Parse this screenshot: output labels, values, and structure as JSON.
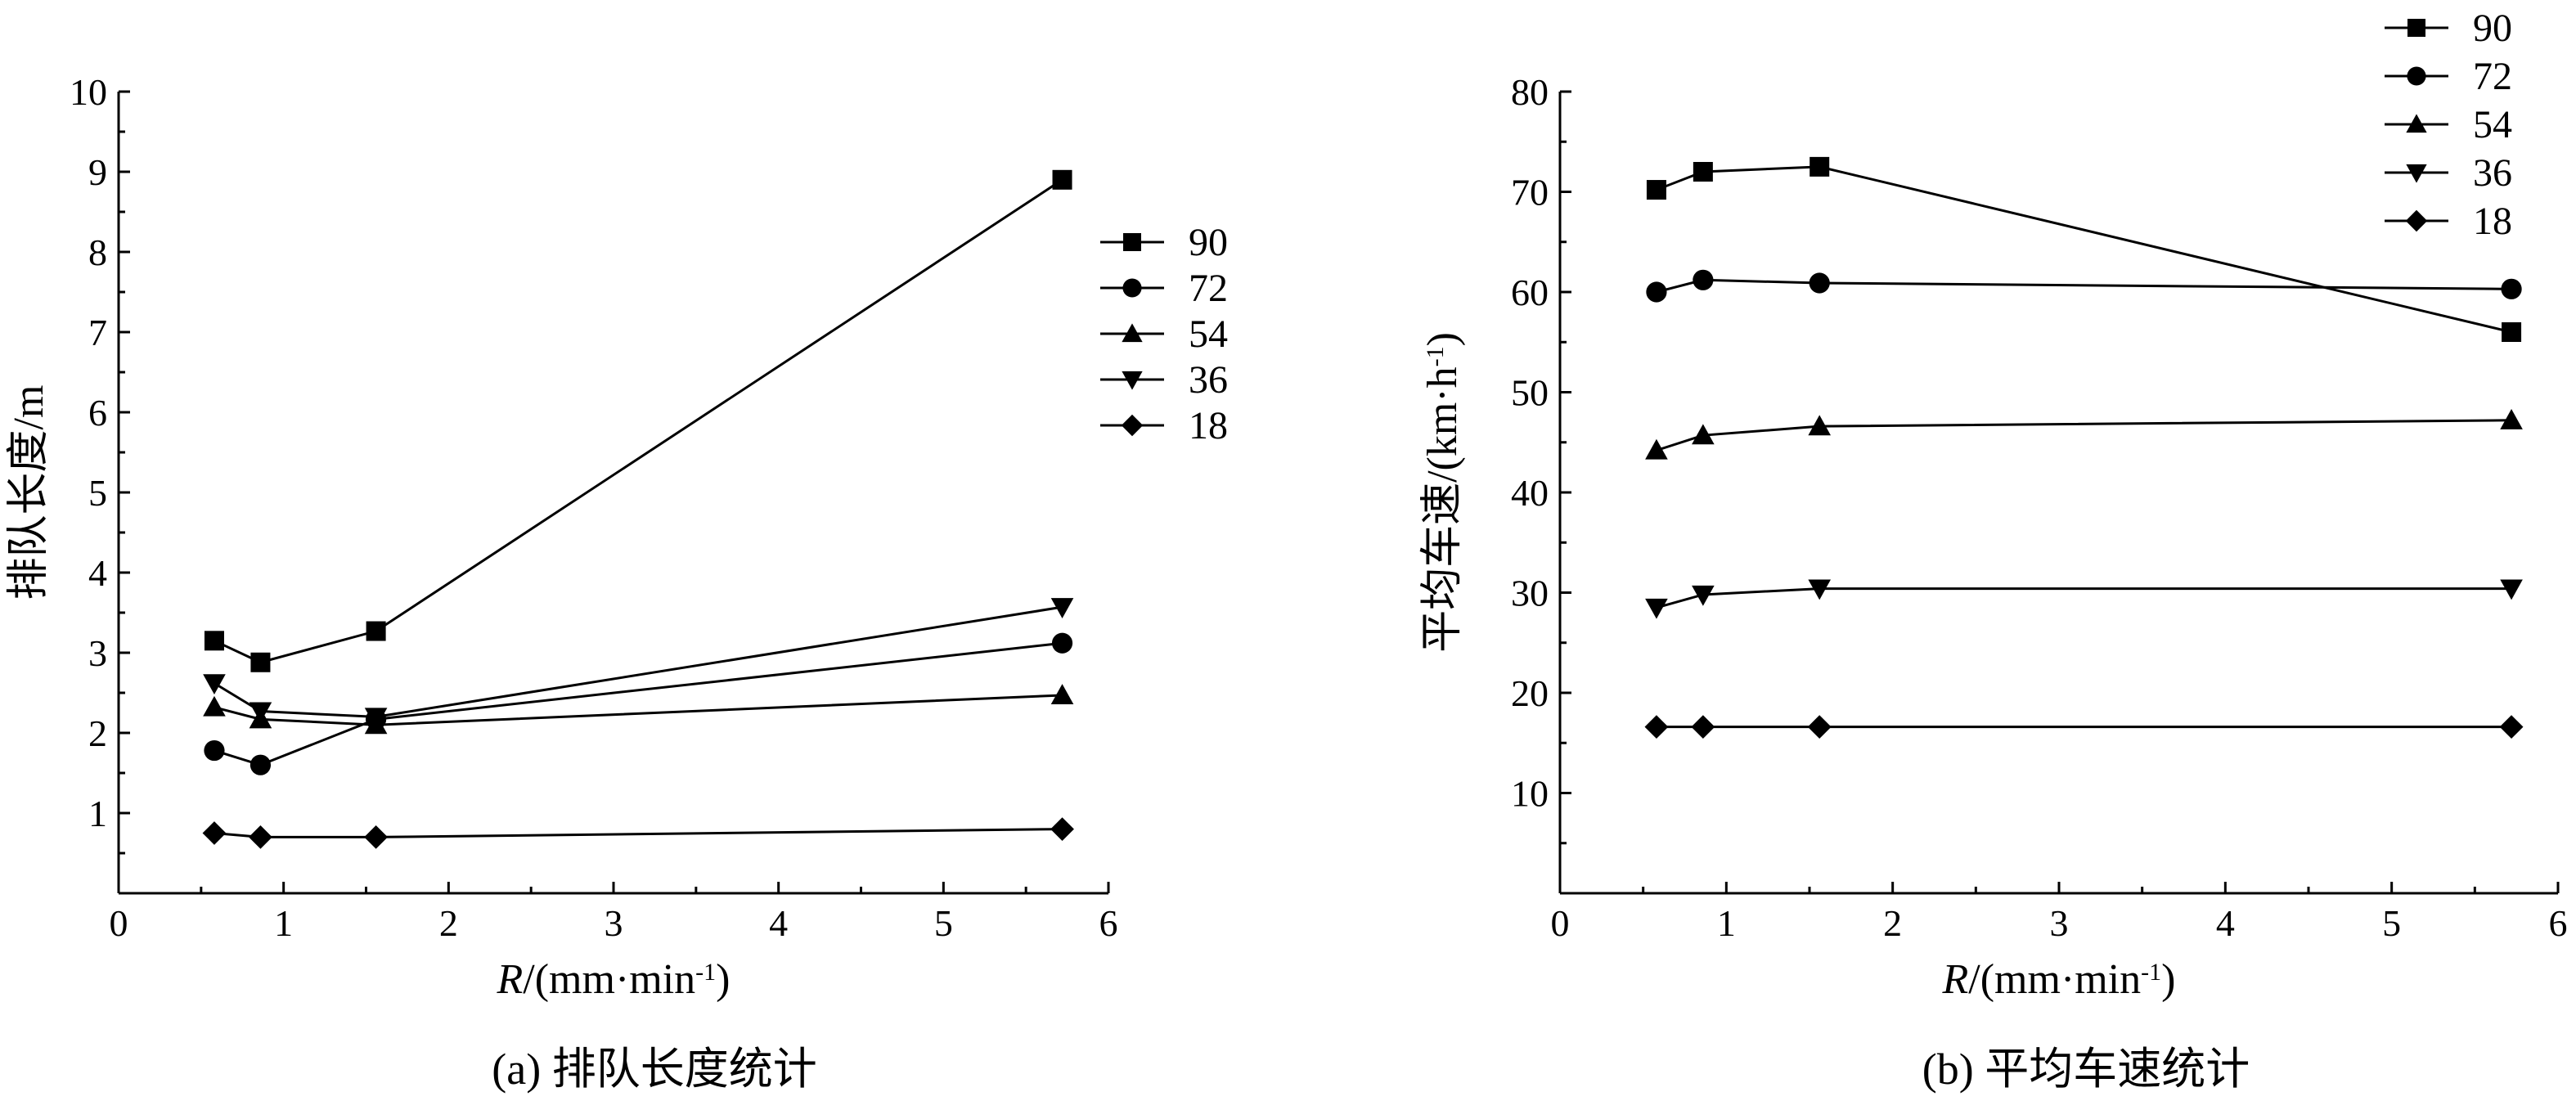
{
  "chart_data": [
    {
      "type": "line",
      "panel_caption": "(a) 排队长度统计",
      "xlabel": "R/(mm·min⁻¹)",
      "ylabel": "排队长度/m",
      "xlim": [
        0,
        6
      ],
      "ylim": [
        0,
        10
      ],
      "xticks": [
        0,
        1,
        2,
        3,
        4,
        5,
        6
      ],
      "yticks": [
        1,
        2,
        3,
        4,
        5,
        6,
        7,
        8,
        9,
        10
      ],
      "x": [
        0.58,
        0.86,
        1.56,
        5.72
      ],
      "legend_position": "right-middle",
      "grid": false,
      "series": [
        {
          "name": "90",
          "marker": "square",
          "values": [
            3.15,
            2.88,
            3.27,
            8.9
          ]
        },
        {
          "name": "72",
          "marker": "circle",
          "values": [
            1.78,
            1.6,
            2.17,
            3.12
          ]
        },
        {
          "name": "54",
          "marker": "triangle-up",
          "values": [
            2.32,
            2.17,
            2.1,
            2.47
          ]
        },
        {
          "name": "36",
          "marker": "triangle-down",
          "values": [
            2.62,
            2.27,
            2.2,
            3.57
          ]
        },
        {
          "name": "18",
          "marker": "diamond",
          "values": [
            0.75,
            0.7,
            0.7,
            0.8
          ]
        }
      ]
    },
    {
      "type": "line",
      "panel_caption": "(b) 平均车速统计",
      "xlabel": "R/(mm·min⁻¹)",
      "ylabel": "平均车速/(km·h⁻¹)",
      "xlim": [
        0,
        6
      ],
      "ylim": [
        0,
        80
      ],
      "xticks": [
        0,
        1,
        2,
        3,
        4,
        5,
        6
      ],
      "yticks": [
        10,
        20,
        30,
        40,
        50,
        60,
        70,
        80
      ],
      "x": [
        0.58,
        0.86,
        1.56,
        5.72
      ],
      "legend_position": "top-right",
      "grid": false,
      "series": [
        {
          "name": "90",
          "marker": "square",
          "values": [
            70.2,
            72.0,
            72.5,
            56.0
          ]
        },
        {
          "name": "72",
          "marker": "circle",
          "values": [
            60.0,
            61.2,
            60.9,
            60.3
          ]
        },
        {
          "name": "54",
          "marker": "triangle-up",
          "values": [
            44.2,
            45.7,
            46.6,
            47.2
          ]
        },
        {
          "name": "36",
          "marker": "triangle-down",
          "values": [
            28.5,
            29.8,
            30.4,
            30.4
          ]
        },
        {
          "name": "18",
          "marker": "diamond",
          "values": [
            16.6,
            16.6,
            16.6,
            16.6
          ]
        }
      ]
    }
  ]
}
